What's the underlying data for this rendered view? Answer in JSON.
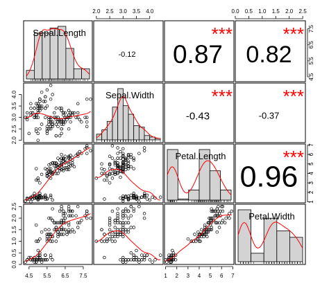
{
  "chart_data": {
    "type": "scatter-matrix",
    "variables": [
      "Sepal.Length",
      "Sepal.Width",
      "Petal.Length",
      "Petal.Width"
    ],
    "ranges": [
      [
        4.2,
        8.0
      ],
      [
        1.9,
        4.5
      ],
      [
        0.9,
        7.1
      ],
      [
        0.0,
        2.6
      ]
    ],
    "ticks": [
      {
        "values": [
          4.5,
          5.5,
          6.5,
          7.5
        ],
        "labels": [
          "4.5",
          "5.5",
          "6.5",
          "7.5"
        ]
      },
      {
        "values": [
          2.0,
          2.5,
          3.0,
          3.5,
          4.0
        ],
        "labels": [
          "2.0",
          "2.5",
          "3.0",
          "3.5",
          "4.0"
        ]
      },
      {
        "values": [
          1,
          2,
          3,
          4,
          5,
          6,
          7
        ],
        "labels": [
          "1",
          "2",
          "3",
          "4",
          "5",
          "6",
          "7"
        ]
      },
      {
        "values": [
          0.0,
          0.5,
          1.0,
          1.5,
          2.0,
          2.5
        ],
        "labels": [
          "0.0",
          "0.5",
          "1.0",
          "1.5",
          "2.0",
          "2.5"
        ]
      }
    ],
    "correlations": [
      {
        "row": 0,
        "col": 1,
        "label": "-0.12",
        "stars": ""
      },
      {
        "row": 0,
        "col": 2,
        "label": "0.87",
        "stars": "***"
      },
      {
        "row": 0,
        "col": 3,
        "label": "0.82",
        "stars": "***"
      },
      {
        "row": 1,
        "col": 2,
        "label": "-0.43",
        "stars": "***"
      },
      {
        "row": 1,
        "col": 3,
        "label": "-0.37",
        "stars": "***"
      },
      {
        "row": 2,
        "col": 3,
        "label": "0.96",
        "stars": "***"
      }
    ],
    "histograms": [
      {
        "edges": [
          4.0,
          4.5,
          5.0,
          5.5,
          6.0,
          6.5,
          7.0,
          7.5,
          8.0
        ],
        "counts": [
          5,
          27,
          27,
          30,
          31,
          18,
          6,
          6
        ]
      },
      {
        "edges": [
          2.0,
          2.2,
          2.4,
          2.6,
          2.8,
          3.0,
          3.2,
          3.4,
          3.6,
          3.8,
          4.0,
          4.2,
          4.4
        ],
        "counts": [
          4,
          7,
          13,
          23,
          36,
          24,
          18,
          10,
          9,
          3,
          2,
          1
        ]
      },
      {
        "edges": [
          1,
          2,
          3,
          4,
          5,
          6,
          7
        ],
        "counts": [
          50,
          1,
          10,
          50,
          29,
          10
        ]
      },
      {
        "edges": [
          0.0,
          0.5,
          1.0,
          1.5,
          2.0,
          2.5
        ],
        "counts": [
          49,
          8,
          41,
          29,
          23
        ]
      }
    ],
    "colors": {
      "points": "#000000",
      "fit": "#ff0000",
      "stars": "#ff0000",
      "bars": "#d3d3d3",
      "frame": "#000000"
    },
    "data": [
      [
        5.1,
        3.5,
        1.4,
        0.2
      ],
      [
        4.9,
        3.0,
        1.4,
        0.2
      ],
      [
        4.7,
        3.2,
        1.3,
        0.2
      ],
      [
        4.6,
        3.1,
        1.5,
        0.2
      ],
      [
        5.0,
        3.6,
        1.4,
        0.2
      ],
      [
        5.4,
        3.9,
        1.7,
        0.4
      ],
      [
        4.6,
        3.4,
        1.4,
        0.3
      ],
      [
        5.0,
        3.4,
        1.5,
        0.2
      ],
      [
        4.4,
        2.9,
        1.4,
        0.2
      ],
      [
        4.9,
        3.1,
        1.5,
        0.1
      ],
      [
        5.4,
        3.7,
        1.5,
        0.2
      ],
      [
        4.8,
        3.4,
        1.6,
        0.2
      ],
      [
        4.8,
        3.0,
        1.4,
        0.1
      ],
      [
        4.3,
        3.0,
        1.1,
        0.1
      ],
      [
        5.8,
        4.0,
        1.2,
        0.2
      ],
      [
        5.7,
        4.4,
        1.5,
        0.4
      ],
      [
        5.4,
        3.9,
        1.3,
        0.4
      ],
      [
        5.1,
        3.5,
        1.4,
        0.3
      ],
      [
        5.7,
        3.8,
        1.7,
        0.3
      ],
      [
        5.1,
        3.8,
        1.5,
        0.3
      ],
      [
        5.4,
        3.4,
        1.7,
        0.2
      ],
      [
        5.1,
        3.7,
        1.5,
        0.4
      ],
      [
        4.6,
        3.6,
        1.0,
        0.2
      ],
      [
        5.1,
        3.3,
        1.7,
        0.5
      ],
      [
        4.8,
        3.4,
        1.9,
        0.2
      ],
      [
        5.0,
        3.0,
        1.6,
        0.2
      ],
      [
        5.0,
        3.4,
        1.6,
        0.4
      ],
      [
        5.2,
        3.5,
        1.5,
        0.2
      ],
      [
        5.2,
        3.4,
        1.4,
        0.2
      ],
      [
        4.7,
        3.2,
        1.6,
        0.2
      ],
      [
        4.8,
        3.1,
        1.6,
        0.2
      ],
      [
        5.4,
        3.4,
        1.5,
        0.4
      ],
      [
        5.2,
        4.1,
        1.5,
        0.1
      ],
      [
        5.5,
        4.2,
        1.4,
        0.2
      ],
      [
        4.9,
        3.1,
        1.5,
        0.2
      ],
      [
        5.0,
        3.2,
        1.2,
        0.2
      ],
      [
        5.5,
        3.5,
        1.3,
        0.2
      ],
      [
        4.9,
        3.6,
        1.4,
        0.1
      ],
      [
        4.4,
        3.0,
        1.3,
        0.2
      ],
      [
        5.1,
        3.4,
        1.5,
        0.2
      ],
      [
        5.0,
        3.5,
        1.3,
        0.3
      ],
      [
        4.5,
        2.3,
        1.3,
        0.3
      ],
      [
        4.4,
        3.2,
        1.3,
        0.2
      ],
      [
        5.0,
        3.5,
        1.6,
        0.6
      ],
      [
        5.1,
        3.8,
        1.9,
        0.4
      ],
      [
        4.8,
        3.0,
        1.4,
        0.3
      ],
      [
        5.1,
        3.8,
        1.6,
        0.2
      ],
      [
        4.6,
        3.2,
        1.4,
        0.2
      ],
      [
        5.3,
        3.7,
        1.5,
        0.2
      ],
      [
        5.0,
        3.3,
        1.4,
        0.2
      ],
      [
        7.0,
        3.2,
        4.7,
        1.4
      ],
      [
        6.4,
        3.2,
        4.5,
        1.5
      ],
      [
        6.9,
        3.1,
        4.9,
        1.5
      ],
      [
        5.5,
        2.3,
        4.0,
        1.3
      ],
      [
        6.5,
        2.8,
        4.6,
        1.5
      ],
      [
        5.7,
        2.8,
        4.5,
        1.3
      ],
      [
        6.3,
        3.3,
        4.7,
        1.6
      ],
      [
        4.9,
        2.4,
        3.3,
        1.0
      ],
      [
        6.6,
        2.9,
        4.6,
        1.3
      ],
      [
        5.2,
        2.7,
        3.9,
        1.4
      ],
      [
        5.0,
        2.0,
        3.5,
        1.0
      ],
      [
        5.9,
        3.0,
        4.2,
        1.5
      ],
      [
        6.0,
        2.2,
        4.0,
        1.0
      ],
      [
        6.1,
        2.9,
        4.7,
        1.4
      ],
      [
        5.6,
        2.9,
        3.6,
        1.3
      ],
      [
        6.7,
        3.1,
        4.4,
        1.4
      ],
      [
        5.6,
        3.0,
        4.5,
        1.5
      ],
      [
        5.8,
        2.7,
        4.1,
        1.0
      ],
      [
        6.2,
        2.2,
        4.5,
        1.5
      ],
      [
        5.6,
        2.5,
        3.9,
        1.1
      ],
      [
        5.9,
        3.2,
        4.8,
        1.8
      ],
      [
        6.1,
        2.8,
        4.0,
        1.3
      ],
      [
        6.3,
        2.5,
        4.9,
        1.5
      ],
      [
        6.1,
        2.8,
        4.7,
        1.2
      ],
      [
        6.4,
        2.9,
        4.3,
        1.3
      ],
      [
        6.6,
        3.0,
        4.4,
        1.4
      ],
      [
        6.8,
        2.8,
        4.8,
        1.4
      ],
      [
        6.7,
        3.0,
        5.0,
        1.7
      ],
      [
        6.0,
        2.9,
        4.5,
        1.5
      ],
      [
        5.7,
        2.6,
        3.5,
        1.0
      ],
      [
        5.5,
        2.4,
        3.8,
        1.1
      ],
      [
        5.5,
        2.4,
        3.7,
        1.0
      ],
      [
        5.8,
        2.7,
        3.9,
        1.2
      ],
      [
        6.0,
        2.7,
        5.1,
        1.6
      ],
      [
        5.4,
        3.0,
        4.5,
        1.5
      ],
      [
        6.0,
        3.4,
        4.5,
        1.6
      ],
      [
        6.7,
        3.1,
        4.7,
        1.5
      ],
      [
        6.3,
        2.3,
        4.4,
        1.3
      ],
      [
        5.6,
        3.0,
        4.1,
        1.3
      ],
      [
        5.5,
        2.5,
        4.0,
        1.3
      ],
      [
        5.5,
        2.6,
        4.4,
        1.2
      ],
      [
        6.1,
        3.0,
        4.6,
        1.4
      ],
      [
        5.8,
        2.6,
        4.0,
        1.2
      ],
      [
        5.0,
        2.3,
        3.3,
        1.0
      ],
      [
        5.6,
        2.7,
        4.2,
        1.3
      ],
      [
        5.7,
        3.0,
        4.2,
        1.2
      ],
      [
        5.7,
        2.9,
        4.2,
        1.3
      ],
      [
        6.2,
        2.9,
        4.3,
        1.3
      ],
      [
        5.1,
        2.5,
        3.0,
        1.1
      ],
      [
        5.7,
        2.8,
        4.1,
        1.3
      ],
      [
        6.3,
        3.3,
        6.0,
        2.5
      ],
      [
        5.8,
        2.7,
        5.1,
        1.9
      ],
      [
        7.1,
        3.0,
        5.9,
        2.1
      ],
      [
        6.3,
        2.9,
        5.6,
        1.8
      ],
      [
        6.5,
        3.0,
        5.8,
        2.2
      ],
      [
        7.6,
        3.0,
        6.6,
        2.1
      ],
      [
        4.9,
        2.5,
        4.5,
        1.7
      ],
      [
        7.3,
        2.9,
        6.3,
        1.8
      ],
      [
        6.7,
        2.5,
        5.8,
        1.8
      ],
      [
        7.2,
        3.6,
        6.1,
        2.5
      ],
      [
        6.5,
        3.2,
        5.1,
        2.0
      ],
      [
        6.4,
        2.7,
        5.3,
        1.9
      ],
      [
        6.8,
        3.0,
        5.5,
        2.1
      ],
      [
        5.7,
        2.5,
        5.0,
        2.0
      ],
      [
        5.8,
        2.8,
        5.1,
        2.4
      ],
      [
        6.4,
        3.2,
        5.3,
        2.3
      ],
      [
        6.5,
        3.0,
        5.5,
        1.8
      ],
      [
        7.7,
        3.8,
        6.7,
        2.2
      ],
      [
        7.7,
        2.6,
        6.9,
        2.3
      ],
      [
        6.0,
        2.2,
        5.0,
        1.5
      ],
      [
        6.9,
        3.2,
        5.7,
        2.3
      ],
      [
        5.6,
        2.8,
        4.9,
        2.0
      ],
      [
        7.7,
        2.8,
        6.7,
        2.0
      ],
      [
        6.3,
        2.7,
        4.9,
        1.8
      ],
      [
        6.7,
        3.3,
        5.7,
        2.1
      ],
      [
        7.2,
        3.2,
        6.0,
        1.8
      ],
      [
        6.2,
        2.8,
        4.8,
        1.8
      ],
      [
        6.1,
        3.0,
        4.9,
        1.8
      ],
      [
        6.4,
        2.8,
        5.6,
        2.1
      ],
      [
        7.2,
        3.0,
        5.8,
        1.6
      ],
      [
        7.4,
        2.8,
        6.1,
        1.9
      ],
      [
        7.9,
        3.8,
        6.4,
        2.0
      ],
      [
        6.4,
        2.8,
        5.6,
        2.2
      ],
      [
        6.3,
        2.8,
        5.1,
        1.5
      ],
      [
        6.1,
        2.6,
        5.6,
        1.4
      ],
      [
        7.7,
        3.0,
        6.1,
        2.3
      ],
      [
        6.3,
        3.4,
        5.6,
        2.4
      ],
      [
        6.4,
        3.1,
        5.5,
        1.8
      ],
      [
        6.0,
        3.0,
        4.8,
        1.8
      ],
      [
        6.9,
        3.1,
        5.4,
        2.1
      ],
      [
        6.7,
        3.1,
        5.6,
        2.4
      ],
      [
        6.9,
        3.1,
        5.1,
        2.3
      ],
      [
        5.8,
        2.7,
        5.1,
        1.9
      ],
      [
        6.8,
        3.2,
        5.9,
        2.3
      ],
      [
        6.7,
        3.3,
        5.7,
        2.5
      ],
      [
        6.7,
        3.0,
        5.2,
        2.3
      ],
      [
        6.3,
        2.5,
        5.0,
        1.9
      ],
      [
        6.5,
        3.0,
        5.2,
        2.0
      ],
      [
        6.2,
        3.4,
        5.4,
        2.3
      ],
      [
        5.9,
        3.0,
        5.1,
        1.8
      ]
    ]
  }
}
